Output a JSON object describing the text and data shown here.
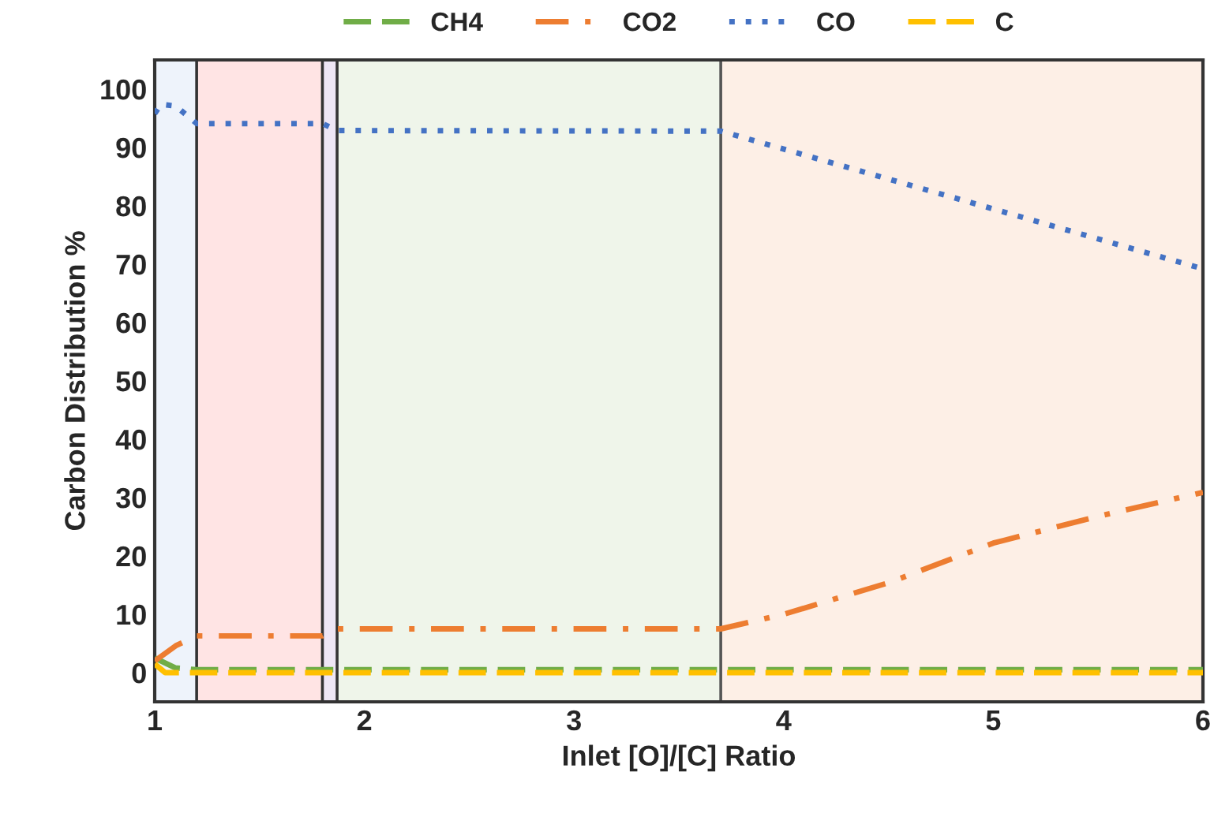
{
  "chart_data": {
    "type": "line",
    "xlabel": "Inlet [O]/[C] Ratio",
    "ylabel": "Carbon Distribution %",
    "xlim": [
      1,
      6
    ],
    "xticks": [
      1,
      2,
      3,
      4,
      5,
      6
    ],
    "ylim": [
      -5,
      105
    ],
    "yticks": [
      0,
      10,
      20,
      30,
      40,
      50,
      60,
      70,
      80,
      90,
      100
    ],
    "grid": false,
    "legend": "top",
    "marker": "none",
    "series": [
      {
        "name": "CH4",
        "color": "#70ad47",
        "line_style": "dashed",
        "x": [
          1,
          1.1,
          1.2,
          1.8,
          1.87,
          3.7,
          6
        ],
        "values": [
          2.5,
          0.8,
          0.5,
          0.5,
          0.5,
          0.5,
          0.5
        ]
      },
      {
        "name": "CO2",
        "color": "#ed7d31",
        "line_style": "dashdot",
        "x": [
          1,
          1.1,
          1.2,
          1.8,
          1.87,
          3.7,
          4,
          4.5,
          5,
          5.5,
          6
        ],
        "values": [
          2,
          4.6,
          6.3,
          6.3,
          7.5,
          7.5,
          10,
          15.4,
          22.2,
          26.8,
          30.9
        ]
      },
      {
        "name": "CO",
        "color": "#4472c4",
        "line_style": "dotted",
        "x": [
          1,
          1.03,
          1.1,
          1.2,
          1.8,
          1.87,
          3.7,
          6
        ],
        "values": [
          95.8,
          97.4,
          97.1,
          94.1,
          94.1,
          92.9,
          92.8,
          69.2
        ]
      },
      {
        "name": "C",
        "color": "#ffc000",
        "line_style": "dashed",
        "x": [
          1,
          1.05,
          1.2,
          1.8,
          1.87,
          3.7,
          6
        ],
        "values": [
          1.5,
          0,
          0,
          0,
          0,
          0,
          0
        ]
      }
    ],
    "bands": [
      {
        "axis": "x",
        "from": 1,
        "to": 1.2,
        "color": "#eef3fb"
      },
      {
        "axis": "x",
        "from": 1.2,
        "to": 1.8,
        "color": "#ffe4e4"
      },
      {
        "axis": "x",
        "from": 1.8,
        "to": 1.87,
        "color": "#eee6f5"
      },
      {
        "axis": "x",
        "from": 1.87,
        "to": 3.7,
        "color": "#eff5ea"
      },
      {
        "axis": "x",
        "from": 3.7,
        "to": 6,
        "color": "#fdefe6"
      }
    ],
    "ref_lines": [
      {
        "axis": "x",
        "value": 1.2,
        "color": "#333333",
        "line_style": "solid"
      },
      {
        "axis": "x",
        "value": 1.8,
        "color": "#333333",
        "line_style": "solid"
      },
      {
        "axis": "x",
        "value": 1.87,
        "color": "#333333",
        "line_style": "solid"
      },
      {
        "axis": "x",
        "value": 3.7,
        "color": "#555555",
        "line_style": "solid"
      }
    ]
  }
}
